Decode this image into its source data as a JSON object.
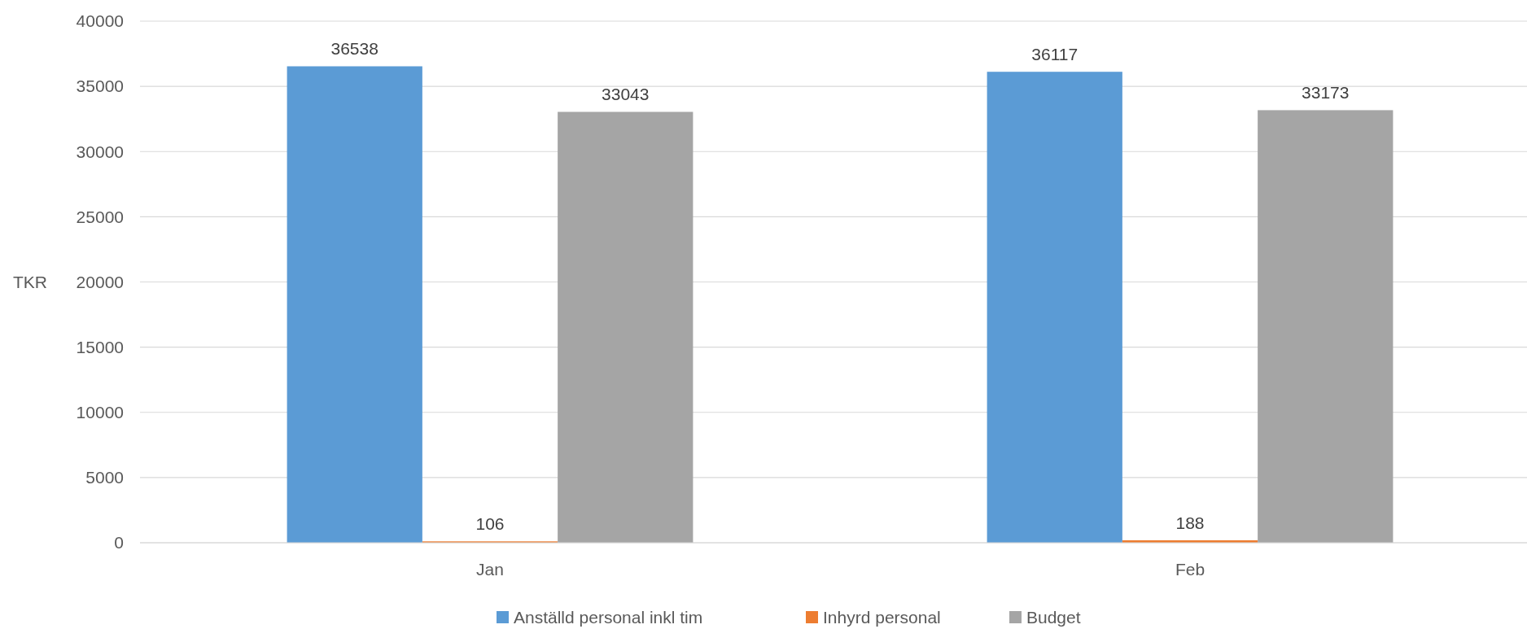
{
  "chart_data": {
    "type": "bar",
    "ylabel": "TKR",
    "categories": [
      "Jan",
      "Feb"
    ],
    "series": [
      {
        "name": "Anställd personal inkl tim",
        "color": "#5b9bd5",
        "values": [
          36538,
          36117
        ]
      },
      {
        "name": "Inhyrd personal",
        "color": "#ed7d31",
        "values": [
          106,
          188
        ]
      },
      {
        "name": "Budget",
        "color": "#a5a5a5",
        "values": [
          33043,
          33173
        ]
      }
    ],
    "ylim": [
      0,
      40000
    ],
    "yticks": [
      0,
      5000,
      10000,
      15000,
      20000,
      25000,
      30000,
      35000,
      40000
    ],
    "grid": "y",
    "data_labels": true,
    "legend": "bottom"
  }
}
